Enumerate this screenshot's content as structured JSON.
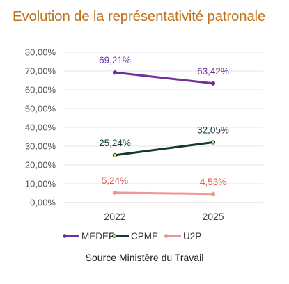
{
  "chart_data": {
    "type": "line",
    "title": "Evolution de la représentativité patronale",
    "source": "Source Ministère du Travail",
    "categories": [
      "2022",
      "2025"
    ],
    "ylim": [
      0,
      80
    ],
    "yticks": [
      0,
      10,
      20,
      30,
      40,
      50,
      60,
      70,
      80
    ],
    "ytick_labels": [
      "0,00%",
      "10,00%",
      "20,00%",
      "30,00%",
      "40,00%",
      "50,00%",
      "60,00%",
      "70,00%",
      "80,00%"
    ],
    "grid": true,
    "legend_position": "bottom",
    "series": [
      {
        "name": "MEDEF",
        "values": [
          69.21,
          63.42
        ],
        "labels": [
          "69,21%",
          "63,42%"
        ],
        "color": "#7030a0",
        "label_color": "#7030a0"
      },
      {
        "name": "CPME",
        "values": [
          25.24,
          32.05
        ],
        "labels": [
          "25,24%",
          "32,05%"
        ],
        "color": "#0e3b2e",
        "label_color": "#0e3b2e"
      },
      {
        "name": "U2P",
        "values": [
          5.24,
          4.53
        ],
        "labels": [
          "5,24%",
          "4,53%"
        ],
        "color": "#f0958f",
        "label_color": "#e05a50"
      }
    ]
  }
}
